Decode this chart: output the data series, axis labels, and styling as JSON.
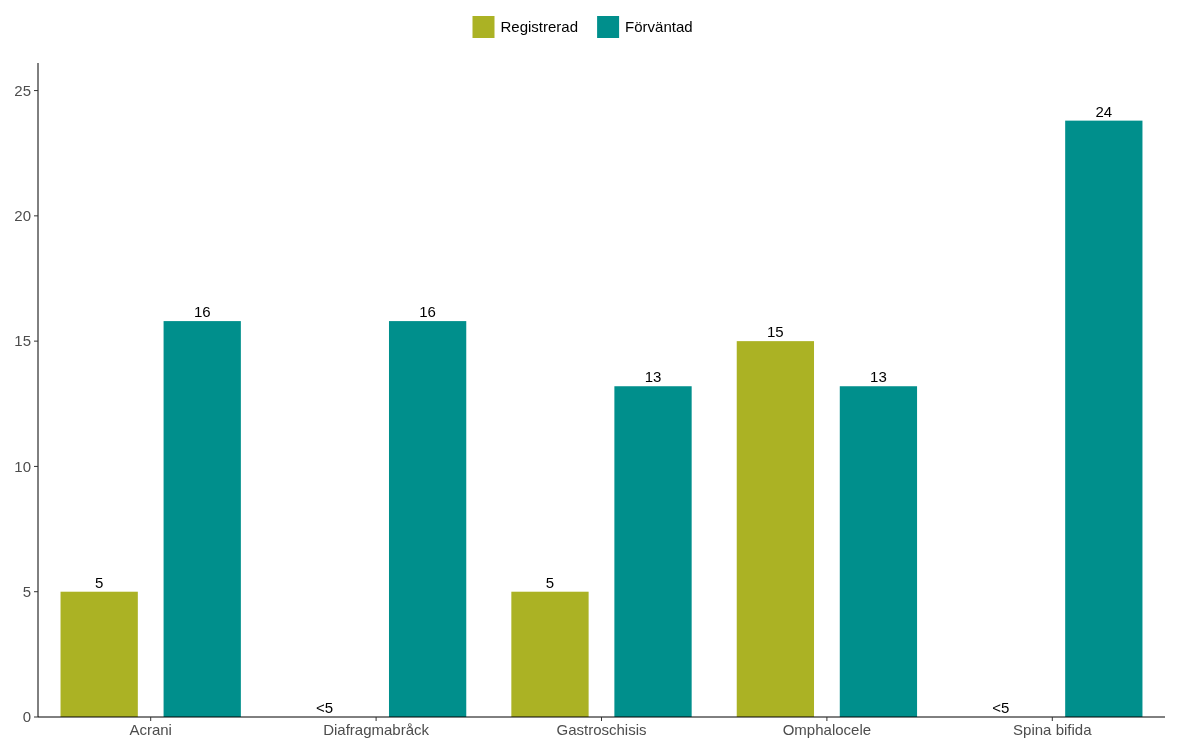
{
  "chart_data": {
    "type": "bar",
    "categories": [
      "Acrani",
      "Diafragmabråck",
      "Gastroschisis",
      "Omphalocele",
      "Spina bifida"
    ],
    "series": [
      {
        "name": "Registrerad",
        "color": "#abb224",
        "values": [
          5,
          null,
          5,
          15,
          null
        ],
        "value_labels": [
          "5",
          "<5",
          "5",
          "15",
          "<5"
        ]
      },
      {
        "name": "Förväntad",
        "color": "#008f8c",
        "values": [
          15.8,
          15.8,
          13.2,
          13.2,
          23.8
        ],
        "value_labels": [
          "16",
          "16",
          "13",
          "13",
          "24"
        ]
      }
    ],
    "ylim": [
      0,
      26.1
    ],
    "yticks": [
      0,
      5,
      10,
      15,
      20,
      25
    ],
    "grid": false,
    "legend": "top"
  }
}
